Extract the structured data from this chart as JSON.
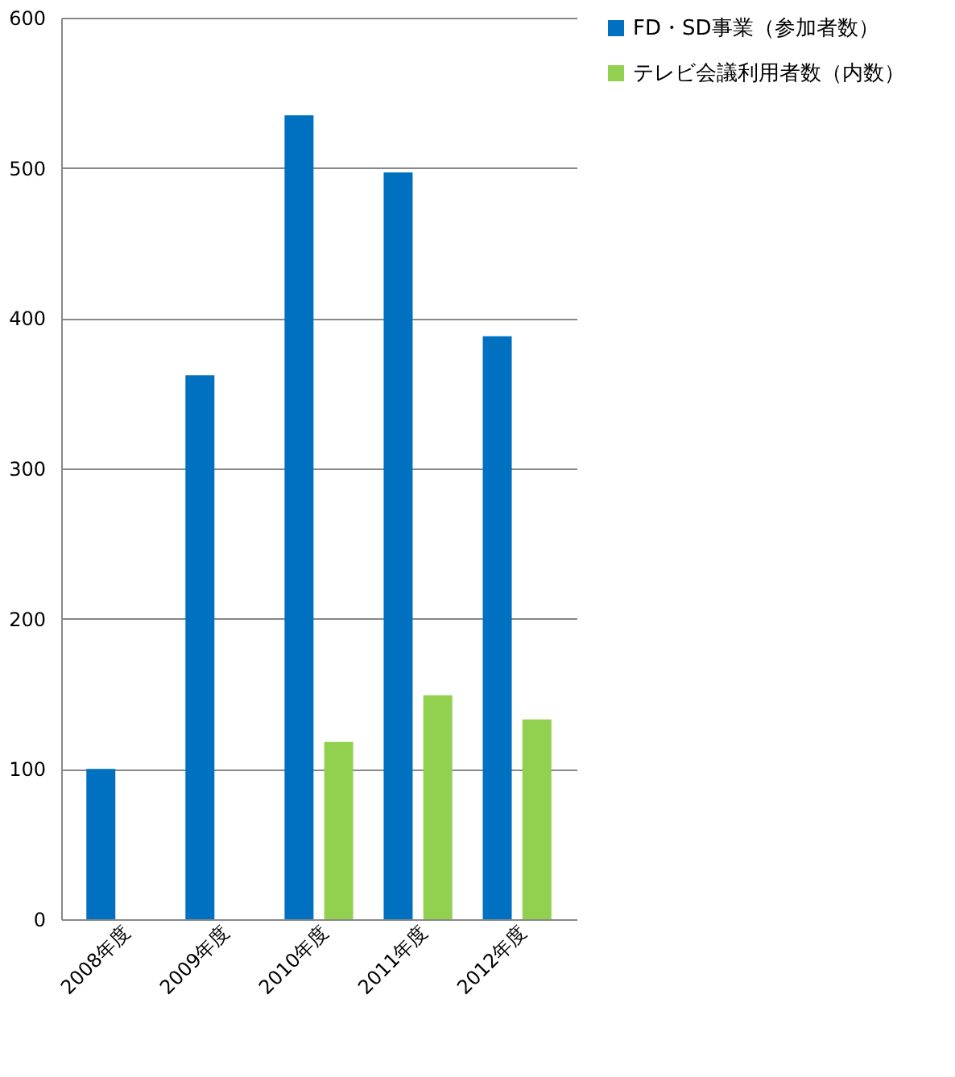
{
  "chart_data": {
    "type": "bar",
    "categories": [
      "2008年度",
      "2009年度",
      "2010年度",
      "2011年度",
      "2012年度"
    ],
    "series": [
      {
        "name": "FD・SD事業（参加者数）",
        "color": "#0070c0",
        "values": [
          100,
          362,
          535,
          497,
          388
        ]
      },
      {
        "name": "テレビ会議利用者数（内数）",
        "color": "#92d050",
        "values": [
          null,
          null,
          118,
          149,
          133
        ]
      }
    ],
    "ylim": [
      0,
      600
    ],
    "yticks": [
      0,
      100,
      200,
      300,
      400,
      500,
      600
    ],
    "grid": "y",
    "legend": "right"
  }
}
